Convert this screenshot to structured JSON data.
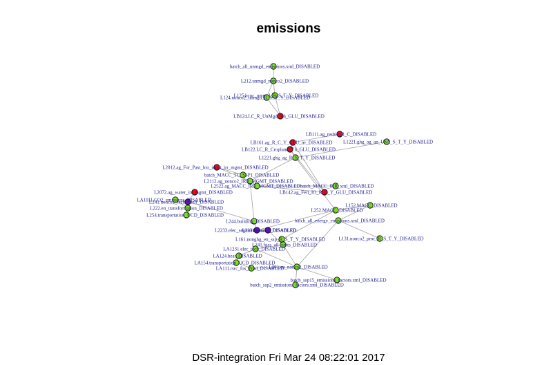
{
  "title": "emissions",
  "footer": "DSR-integration Fri Mar 24 08:22:01 2017",
  "colors": {
    "green": "#80e020",
    "red": "#e0101a",
    "purple": "#6a10c0",
    "label": "#1a1a8c",
    "edge": "#a0a0a0"
  },
  "nodes": [
    {
      "id": "n0",
      "label": "batch_all_unmgd_emissions.xml_DISABLED",
      "color": "green"
    },
    {
      "id": "n1",
      "label": "L212.unmgd_nonco2_DISABLED",
      "color": "green"
    },
    {
      "id": "n2",
      "label": "L125.bcoc_unmgd_R_S_T_Y_DISABLED",
      "color": "green"
    },
    {
      "id": "n3",
      "label": "L124.nonco2_unmgd_R_S_T_Y_DISABLED",
      "color": "green"
    },
    {
      "id": "n4",
      "label": "LB124.LC_R_UnMgd_Yh_GLU_DISABLED",
      "color": "red"
    },
    {
      "id": "n5",
      "label": "LB111.ag_resbio_R_C_DISABLED",
      "color": "red"
    },
    {
      "id": "n6",
      "label": "LB161.ag_R_C_Y_GLU_irr_DISABLED",
      "color": "red"
    },
    {
      "id": "n7",
      "label": "L1221.ghg_ag_an_USA_S_T_Y_DISABLED",
      "color": "green"
    },
    {
      "id": "n8",
      "label": "LB122.LC_R_Cropland_Yh_GLU_DISABLED",
      "color": "red"
    },
    {
      "id": "n9",
      "label": "L1221.ghg_ag_R_S_T_Y_DISABLED",
      "color": "green"
    },
    {
      "id": "n10",
      "label": "L2012.ag_For_Past_bio_input_irr_mgmt_DISABLED",
      "color": "red"
    },
    {
      "id": "n11",
      "label": "batch_MACC_TC_SSP1_DISABLED",
      "color": "green"
    },
    {
      "id": "n12",
      "label": "L2112.ag_nonco2_IRR_MGMT_DISABLED",
      "color": "green"
    },
    {
      "id": "n13",
      "label": "L2522.ag_MACC_IRR_MGMT_DISABLED",
      "color": "green"
    },
    {
      "id": "n14",
      "label": "LB142.ag_Fert_IO_R_C_Y_GLU_DISABLED",
      "color": "red"
    },
    {
      "id": "n15",
      "label": "L2072.ag_water_irr_mgmt_DISABLED",
      "color": "red"
    },
    {
      "id": "n16",
      "label": "L241.nonco2_tech_coeff_DISABLED",
      "color": "purple"
    },
    {
      "id": "n17",
      "label": "L222.en_transformation_DISABLED",
      "color": "green"
    },
    {
      "id": "n18",
      "label": "L254.transportation_UCD_DISABLED",
      "color": "green"
    },
    {
      "id": "n19",
      "label": "L244.building_DISABLED",
      "color": "green"
    },
    {
      "id": "n20",
      "label": "L2233.elec_segments_water_DISABLED",
      "color": "purple"
    },
    {
      "id": "n21",
      "label": "L252.MACC_DISABLED",
      "color": "green"
    },
    {
      "id": "n22",
      "label": "L152.MACC_DISABLED",
      "color": "green"
    },
    {
      "id": "n23",
      "label": "batch_all_energy_emissions.xml_DISABLED",
      "color": "green"
    },
    {
      "id": "n24",
      "label": "L131.nonco2_proc_R_S_T_Y_DISABLED",
      "color": "green"
    },
    {
      "id": "n25",
      "label": "L161.nonghg_en_ssp_R_S_T_Y_DISABLED",
      "color": "green"
    },
    {
      "id": "n26",
      "label": "L241.fgas_all_units_DISABLED",
      "color": "green"
    },
    {
      "id": "n27",
      "label": "LA1231.elec_tech_DISABLED",
      "color": "green"
    },
    {
      "id": "n28",
      "label": "LA124.heat_DISABLED",
      "color": "green"
    },
    {
      "id": "n29",
      "label": "LA154.transportation_UCD_DISABLED",
      "color": "green"
    },
    {
      "id": "n30",
      "label": "LA111.rsrc_fos_Prod_DISABLED",
      "color": "green"
    },
    {
      "id": "n31",
      "label": "L201.en_nonco2_DISABLED",
      "color": "green"
    },
    {
      "id": "n32",
      "label": "batch_ssp15_emissions_factors.xml_DISABLED",
      "color": "green"
    },
    {
      "id": "n33",
      "label": "batch_ssp2_emissions_factors.xml_DISABLED",
      "color": "green"
    },
    {
      "id": "n34",
      "label": "L2231.nonco2_DISABLED",
      "color": "purple"
    },
    {
      "id": "n35",
      "label": "LA1011.CO2_emissions_DISABLED",
      "color": "green"
    },
    {
      "id": "n36",
      "label": "batch_MACC_IRR_xml_DISABLED",
      "color": "green"
    }
  ],
  "edges": [
    [
      "n1",
      "n0"
    ],
    [
      "n2",
      "n1"
    ],
    [
      "n3",
      "n1"
    ],
    [
      "n4",
      "n3"
    ],
    [
      "n4",
      "n2"
    ],
    [
      "n5",
      "n6"
    ],
    [
      "n6",
      "n8"
    ],
    [
      "n7",
      "n9"
    ],
    [
      "n8",
      "n9"
    ],
    [
      "n9",
      "n12"
    ],
    [
      "n10",
      "n11"
    ],
    [
      "n10",
      "n12"
    ],
    [
      "n12",
      "n13"
    ],
    [
      "n14",
      "n13"
    ],
    [
      "n13",
      "n36"
    ],
    [
      "n15",
      "n16"
    ],
    [
      "n16",
      "n17"
    ],
    [
      "n16",
      "n18"
    ],
    [
      "n16",
      "n19"
    ],
    [
      "n19",
      "n20"
    ],
    [
      "n20",
      "n21"
    ],
    [
      "n21",
      "n22"
    ],
    [
      "n22",
      "n23"
    ],
    [
      "n24",
      "n23"
    ],
    [
      "n21",
      "n25"
    ],
    [
      "n25",
      "n26"
    ],
    [
      "n26",
      "n27"
    ],
    [
      "n27",
      "n28"
    ],
    [
      "n28",
      "n29"
    ],
    [
      "n29",
      "n30"
    ],
    [
      "n30",
      "n31"
    ],
    [
      "n31",
      "n32"
    ],
    [
      "n31",
      "n33"
    ],
    [
      "n34",
      "n26"
    ],
    [
      "n35",
      "n17"
    ],
    [
      "n8",
      "n14"
    ],
    [
      "n6",
      "n14"
    ],
    [
      "n9",
      "n21"
    ],
    [
      "n26",
      "n31"
    ],
    [
      "n27",
      "n31"
    ],
    [
      "n17",
      "n18"
    ],
    [
      "n23",
      "n31"
    ],
    [
      "n12",
      "n19"
    ]
  ]
}
